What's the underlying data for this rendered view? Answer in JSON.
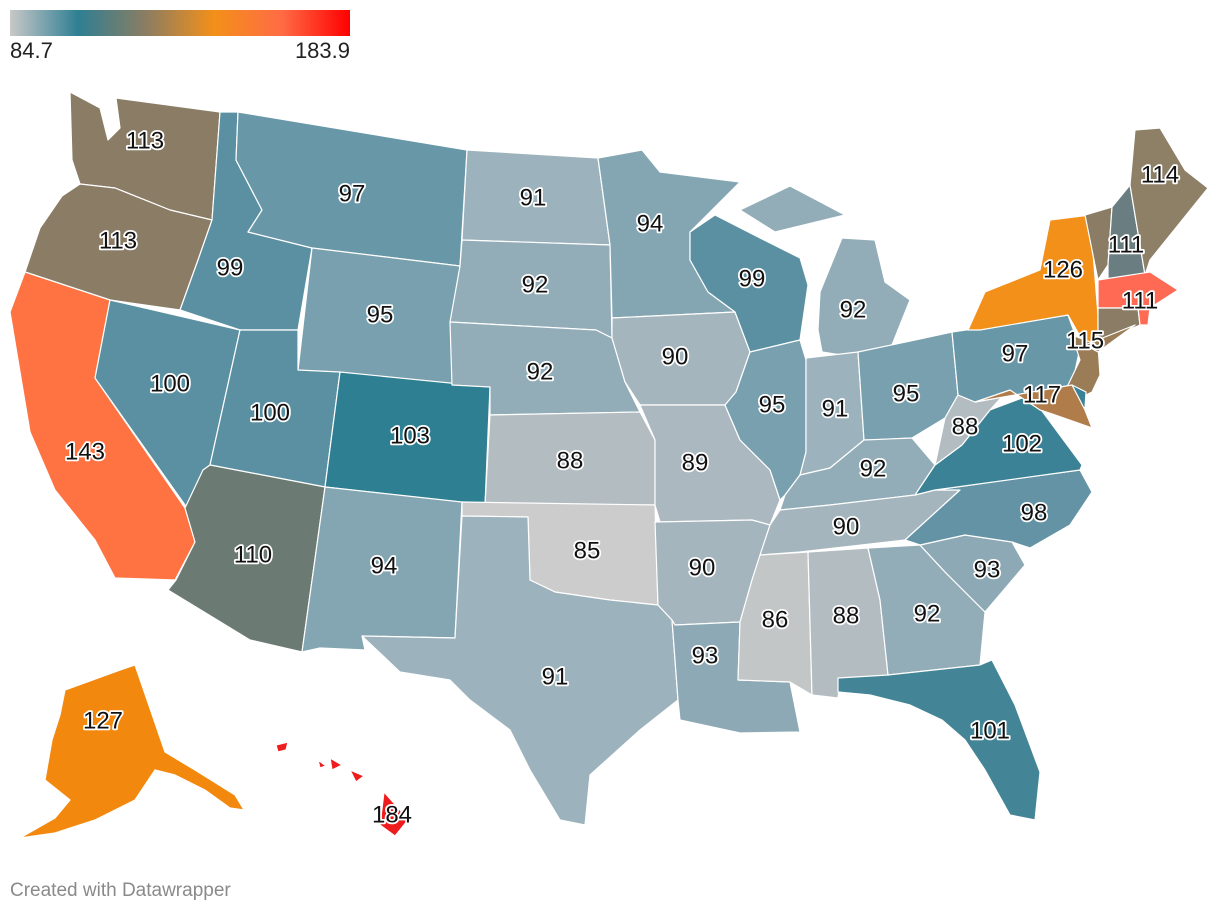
{
  "legend": {
    "min_label": "84.7",
    "max_label": "183.9",
    "gradient": [
      "#c8c8c8",
      "#2f7f93",
      "#8b7d62",
      "#f39019",
      "#ff6b45",
      "#ff0000"
    ]
  },
  "credit": "Created with Datawrapper",
  "states": [
    {
      "code": "WA",
      "label": "113",
      "color": "#8a7c65"
    },
    {
      "code": "OR",
      "label": "113",
      "color": "#8a7c65"
    },
    {
      "code": "CA",
      "label": "143",
      "color": "#ff7342"
    },
    {
      "code": "NV",
      "label": "100",
      "color": "#5a90a2"
    },
    {
      "code": "ID",
      "label": "99",
      "color": "#5a90a2"
    },
    {
      "code": "MT",
      "label": "97",
      "color": "#6897a8"
    },
    {
      "code": "WY",
      "label": "95",
      "color": "#78a0ae"
    },
    {
      "code": "UT",
      "label": "100",
      "color": "#5a90a2"
    },
    {
      "code": "AZ",
      "label": "110",
      "color": "#6b7a72"
    },
    {
      "code": "CO",
      "label": "103",
      "color": "#2f7f93"
    },
    {
      "code": "NM",
      "label": "94",
      "color": "#84a6b3"
    },
    {
      "code": "ND",
      "label": "91",
      "color": "#9cb2bc"
    },
    {
      "code": "SD",
      "label": "92",
      "color": "#93adb8"
    },
    {
      "code": "NE",
      "label": "92",
      "color": "#93adb8"
    },
    {
      "code": "KS",
      "label": "88",
      "color": "#b2bcc1"
    },
    {
      "code": "OK",
      "label": "85",
      "color": "#cccccc"
    },
    {
      "code": "TX",
      "label": "91",
      "color": "#9cb2bc"
    },
    {
      "code": "MN",
      "label": "94",
      "color": "#84a6b3"
    },
    {
      "code": "IA",
      "label": "90",
      "color": "#a5b5bd"
    },
    {
      "code": "MO",
      "label": "89",
      "color": "#abb8bf"
    },
    {
      "code": "AR",
      "label": "90",
      "color": "#a5b5bd"
    },
    {
      "code": "LA",
      "label": "93",
      "color": "#8ca9b5"
    },
    {
      "code": "WI",
      "label": "99",
      "color": "#5a90a2"
    },
    {
      "code": "IL",
      "label": "95",
      "color": "#78a0ae"
    },
    {
      "code": "MI",
      "label": "92",
      "color": "#93adb8"
    },
    {
      "code": "IN",
      "label": "91",
      "color": "#9cb2bc"
    },
    {
      "code": "OH",
      "label": "95",
      "color": "#78a0ae"
    },
    {
      "code": "KY",
      "label": "92",
      "color": "#93adb8"
    },
    {
      "code": "TN",
      "label": "90",
      "color": "#a5b5bd"
    },
    {
      "code": "MS",
      "label": "86",
      "color": "#c3c6c7"
    },
    {
      "code": "AL",
      "label": "88",
      "color": "#b2bcc1"
    },
    {
      "code": "GA",
      "label": "92",
      "color": "#93adb8"
    },
    {
      "code": "FL",
      "label": "101",
      "color": "#438596"
    },
    {
      "code": "SC",
      "label": "93",
      "color": "#8ca9b5"
    },
    {
      "code": "NC",
      "label": "98",
      "color": "#6393a5"
    },
    {
      "code": "VA",
      "label": "102",
      "color": "#3b8296"
    },
    {
      "code": "WV",
      "label": "88",
      "color": "#b2bcc1"
    },
    {
      "code": "PA",
      "label": "97",
      "color": "#6897a8"
    },
    {
      "code": "NY",
      "label": "126",
      "color": "#f39019"
    },
    {
      "code": "VT",
      "label": "",
      "color": "#8a7c65"
    },
    {
      "code": "NH",
      "label": "111",
      "color": "#6a7d80"
    },
    {
      "code": "ME",
      "label": "114",
      "color": "#8e7f67"
    },
    {
      "code": "MA",
      "label": "111",
      "color": "#ff6a55"
    },
    {
      "code": "CT",
      "label": "",
      "color": "#8a7c65"
    },
    {
      "code": "RI",
      "label": "",
      "color": "#ff6a55"
    },
    {
      "code": "NJ",
      "label": "115",
      "color": "#9a7c56"
    },
    {
      "code": "DE",
      "label": "",
      "color": "#3b8296"
    },
    {
      "code": "MD",
      "label": "117",
      "color": "#b07c4a"
    },
    {
      "code": "AK",
      "label": "127",
      "color": "#f3880e"
    },
    {
      "code": "HI",
      "label": "184",
      "color": "#ee1c1c"
    }
  ]
}
